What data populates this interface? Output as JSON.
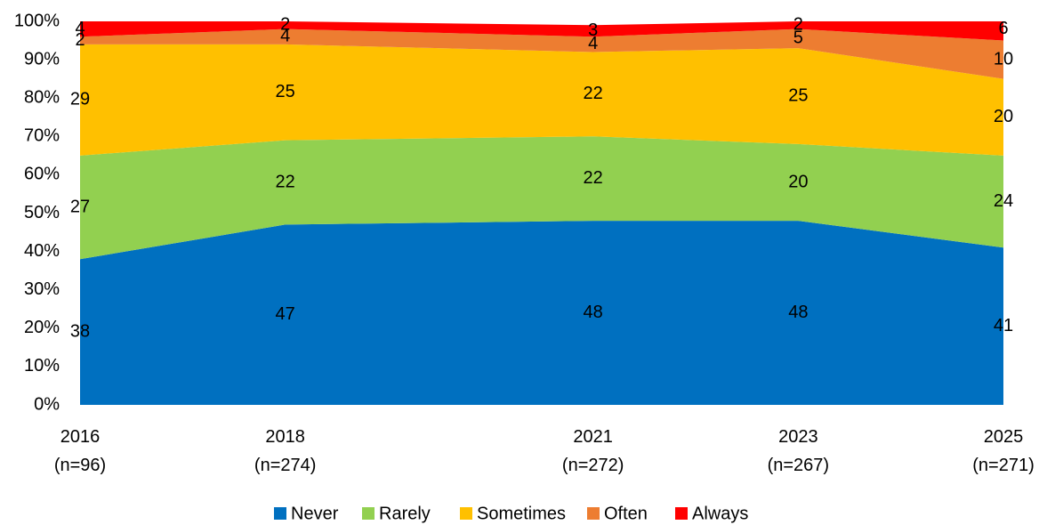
{
  "chart_data": {
    "type": "stacked_area",
    "x": [
      2016,
      2018,
      2021,
      2023,
      2025
    ],
    "xlim": [
      2016,
      2025
    ],
    "xticks": [
      {
        "value": 2016,
        "label": "2016\n(n=96)"
      },
      {
        "value": 2018,
        "label": "2018\n(n=274)"
      },
      {
        "value": 2021,
        "label": "2021\n(n=272)"
      },
      {
        "value": 2023,
        "label": "2023\n(n=267)"
      },
      {
        "value": 2025,
        "label": "2025\n(n=271)"
      }
    ],
    "ylim": [
      0,
      100
    ],
    "yticks": [
      {
        "value": 0,
        "label": "0%"
      },
      {
        "value": 10,
        "label": "10%"
      },
      {
        "value": 20,
        "label": "20%"
      },
      {
        "value": 30,
        "label": "30%"
      },
      {
        "value": 40,
        "label": "40%"
      },
      {
        "value": 50,
        "label": "50%"
      },
      {
        "value": 60,
        "label": "60%"
      },
      {
        "value": 70,
        "label": "70%"
      },
      {
        "value": 80,
        "label": "80%"
      },
      {
        "value": 90,
        "label": "90%"
      },
      {
        "value": 100,
        "label": "100%"
      }
    ],
    "legend": "bottom",
    "series": [
      {
        "name": "Never",
        "color": "#0070c0",
        "values": [
          38,
          47,
          48,
          48,
          41
        ]
      },
      {
        "name": "Rarely",
        "color": "#92d050",
        "values": [
          27,
          22,
          22,
          20,
          24
        ]
      },
      {
        "name": "Sometimes",
        "color": "#ffc000",
        "values": [
          29,
          25,
          22,
          25,
          20
        ]
      },
      {
        "name": "Often",
        "color": "#ed7d31",
        "values": [
          2,
          4,
          4,
          5,
          10
        ]
      },
      {
        "name": "Always",
        "color": "#ff0000",
        "values": [
          4,
          2,
          3,
          2,
          6
        ]
      }
    ]
  }
}
